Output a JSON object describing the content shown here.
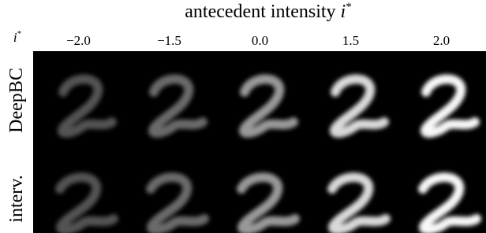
{
  "title": {
    "text": "antecedent intensity",
    "variable": "i",
    "superscript": "*"
  },
  "corner_label": {
    "variable": "i",
    "superscript": "*"
  },
  "columns": [
    "−2.0",
    "−1.5",
    "0.0",
    "1.5",
    "2.0"
  ],
  "rows": [
    "DeepBC",
    "interv."
  ]
}
